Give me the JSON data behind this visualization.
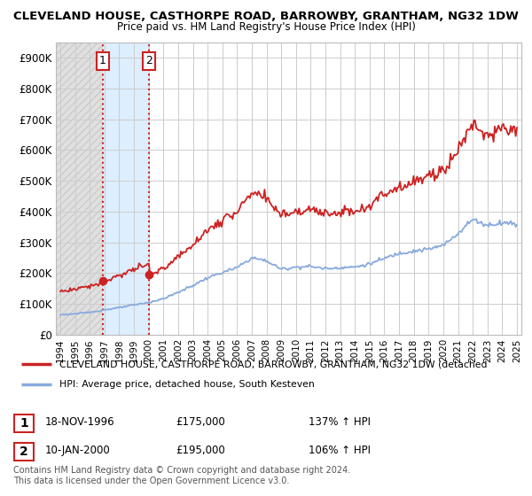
{
  "title_line1": "CLEVELAND HOUSE, CASTHORPE ROAD, BARROWBY, GRANTHAM, NG32 1DW",
  "title_line2": "Price paid vs. HM Land Registry's House Price Index (HPI)",
  "ylabel_ticks": [
    "£0",
    "£100K",
    "£200K",
    "£300K",
    "£400K",
    "£500K",
    "£600K",
    "£700K",
    "£800K",
    "£900K"
  ],
  "ytick_values": [
    0,
    100000,
    200000,
    300000,
    400000,
    500000,
    600000,
    700000,
    800000,
    900000
  ],
  "ylim": [
    0,
    950000
  ],
  "xlim_start": 1993.7,
  "xlim_end": 2025.3,
  "sale1_x": 1996.88,
  "sale1_y": 175000,
  "sale2_x": 2000.03,
  "sale2_y": 195000,
  "sale1_label": "1",
  "sale2_label": "2",
  "sale1_date": "18-NOV-1996",
  "sale1_price": "£175,000",
  "sale1_hpi": "137% ↑ HPI",
  "sale2_date": "10-JAN-2000",
  "sale2_price": "£195,000",
  "sale2_hpi": "106% ↑ HPI",
  "legend_line1": "CLEVELAND HOUSE, CASTHORPE ROAD, BARROWBY, GRANTHAM, NG32 1DW (detached",
  "legend_line2": "HPI: Average price, detached house, South Kesteven",
  "footer": "Contains HM Land Registry data © Crown copyright and database right 2024.\nThis data is licensed under the Open Government Licence v3.0.",
  "price_color": "#cc2222",
  "hpi_color": "#88aadd",
  "bg_color": "#ffffff",
  "grid_color": "#cccccc",
  "vline_color": "#cc2222",
  "hatch_bg": "#e8e8e8",
  "light_blue_bg": "#ddeeff",
  "sale_marker_size": 7
}
